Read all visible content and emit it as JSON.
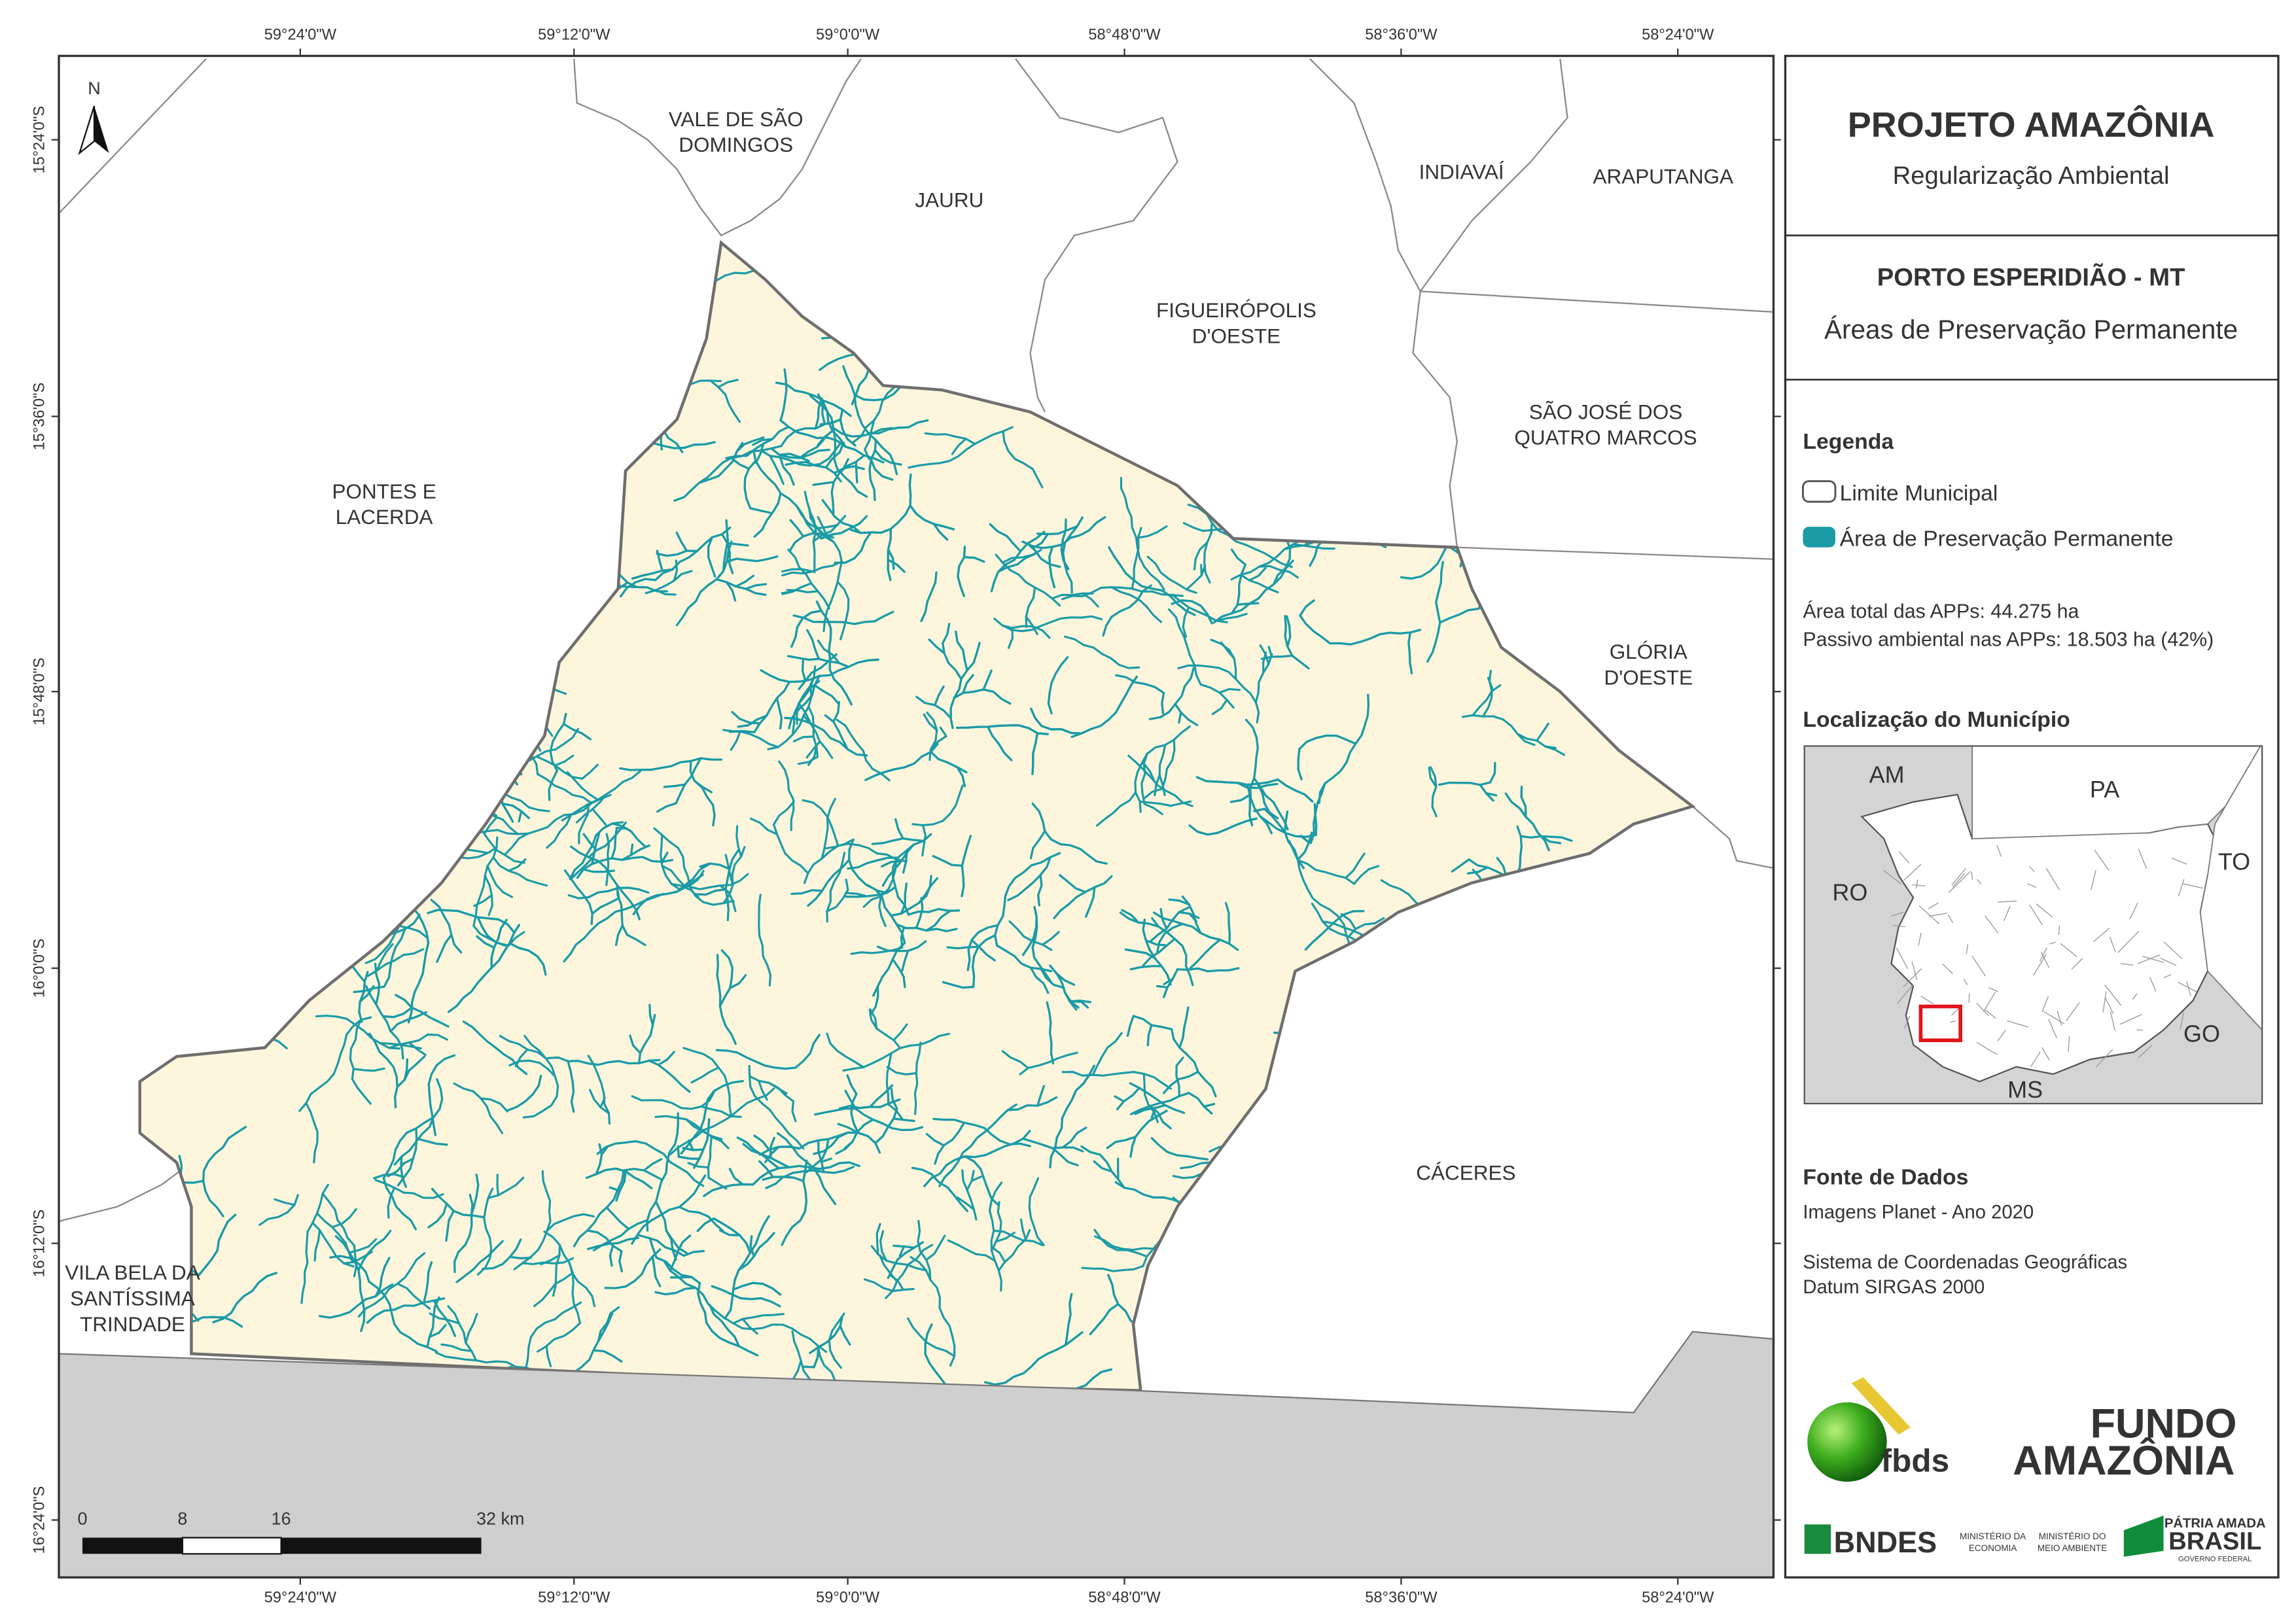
{
  "map": {
    "north": "N",
    "top_coordinates": [
      "59°24'0\"W",
      "59°12'0\"W",
      "59°0'0\"W",
      "58°48'0\"W",
      "58°36'0\"W",
      "58°24'0\"W"
    ],
    "bottom_coordinates": [
      "59°24'0\"W",
      "59°12'0\"W",
      "59°0'0\"W",
      "58°48'0\"W",
      "58°36'0\"W",
      "58°24'0\"W"
    ],
    "left_coordinates": [
      "15°24'0\"S",
      "15°36'0\"S",
      "15°48'0\"S",
      "16°0'0\"S",
      "16°12'0\"S",
      "16°24'0\"S"
    ],
    "municipalities": [
      [
        "VALE DE SÃO",
        "DOMINGOS"
      ],
      [
        "JAURU"
      ],
      [
        "INDIAVAÍ"
      ],
      [
        "ARAPUTANGA"
      ],
      [
        "FIGUEIRÓPOLIS",
        "D'OESTE"
      ],
      [
        "SÃO JOSÉ DOS",
        "QUATRO MARCOS"
      ],
      [
        "PONTES E",
        "LACERDA"
      ],
      [
        "GLÓRIA",
        "D'OESTE"
      ],
      [
        "CÁCERES"
      ],
      [
        "VILA BELA DA",
        "SANTÍSSIMA",
        "TRINDADE"
      ]
    ],
    "scale_bar": [
      "0",
      "8",
      "16",
      "32 km"
    ]
  },
  "panel": {
    "title": "PROJETO AMAZÔNIA",
    "subtitle": "Regularização Ambiental",
    "municipality": "PORTO ESPERIDIÃO - MT",
    "theme": "Áreas de Preservação Permanente",
    "legend": {
      "title": "Legenda",
      "items": [
        "Limite Municipal",
        "Área de Preservação Permanente"
      ]
    },
    "stats": [
      "Área total das APPs: 44.275 ha",
      "Passivo ambiental nas APPs: 18.503 ha (42%)"
    ],
    "location": {
      "title": "Localização do Município",
      "labels": [
        "AM",
        "PA",
        "TO",
        "RO",
        "GO",
        "MS"
      ]
    },
    "sources": {
      "title": "Fonte de Dados",
      "lines": [
        "Imagens Planet - Ano 2020",
        "Sistema de Coordenadas Geográficas",
        "Datum SIRGAS 2000"
      ]
    },
    "logos": [
      "fbds",
      "FUNDO",
      "AMAZÔNIA",
      "BNDES",
      "MINISTÉRIO DA",
      "ECONOMIA",
      "MINISTÉRIO DO",
      "MEIO AMBIENTE",
      "PÁTRIA AMADA",
      "BRASIL",
      "GOVERNO FEDERAL"
    ]
  }
}
